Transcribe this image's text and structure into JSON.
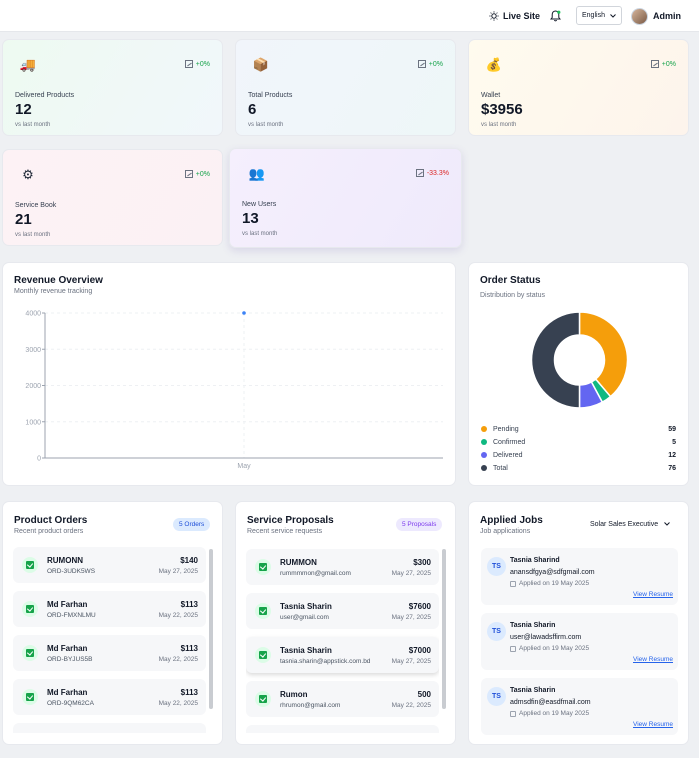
{
  "topbar": {
    "live_site_label": "Live Site",
    "language": "English",
    "user_name": "Admin"
  },
  "stats": [
    {
      "label": "Delivered Products",
      "value": "12",
      "sub": "vs last month",
      "trend": "+0%",
      "icon": "truck-icon",
      "glyph": "🚚"
    },
    {
      "label": "Total Products",
      "value": "6",
      "sub": "vs last month",
      "trend": "+0%",
      "icon": "box-icon",
      "glyph": "📦"
    },
    {
      "label": "Wallet",
      "value": "$3956",
      "sub": "vs last month",
      "trend": "+0%",
      "icon": "money-bag-icon",
      "glyph": "💰"
    },
    {
      "label": "Service Book",
      "value": "21",
      "sub": "vs last month",
      "trend": "+0%",
      "icon": "gear-icon",
      "glyph": "⚙"
    },
    {
      "label": "New Users",
      "value": "13",
      "sub": "vs last month",
      "trend": "-33.3%",
      "icon": "users-icon",
      "glyph": "👥"
    }
  ],
  "revenue": {
    "title": "Revenue Overview",
    "subtitle": "Monthly revenue tracking"
  },
  "order_status": {
    "title": "Order Status",
    "subtitle": "Distribution by status",
    "legend": [
      {
        "label": "Pending",
        "value": "59",
        "color": "#f59e0b"
      },
      {
        "label": "Confirmed",
        "value": "5",
        "color": "#10b981"
      },
      {
        "label": "Delivered",
        "value": "12",
        "color": "#6366f1"
      },
      {
        "label": "Total",
        "value": "76",
        "color": "#374151"
      }
    ]
  },
  "chart_data": [
    {
      "type": "line",
      "x": [
        "May"
      ],
      "series": [
        {
          "values": [
            4000
          ],
          "color": "#3b82f6"
        }
      ],
      "ylim": [
        0,
        4000
      ],
      "yticks": [
        "0",
        "1000",
        "2000",
        "3000",
        "4000"
      ],
      "grid": true
    },
    {
      "type": "pie",
      "categories": [
        "Pending",
        "Confirmed",
        "Delivered",
        "Total"
      ],
      "values": [
        59,
        5,
        12,
        76
      ],
      "colors": [
        "#f59e0b",
        "#10b981",
        "#6366f1",
        "#374151"
      ]
    }
  ],
  "product_orders": {
    "title": "Product Orders",
    "subtitle": "Recent product orders",
    "badge": "5 Orders",
    "rows": [
      {
        "name": "RUMONN",
        "sub": "ORD-3UDK5WS",
        "amount": "$140",
        "date": "May 27, 2025"
      },
      {
        "name": "Md Farhan",
        "sub": "ORD-FMXNLMU",
        "amount": "$113",
        "date": "May 22, 2025"
      },
      {
        "name": "Md Farhan",
        "sub": "ORD-BYJUS5B",
        "amount": "$113",
        "date": "May 22, 2025"
      },
      {
        "name": "Md Farhan",
        "sub": "ORD-9QM62CA",
        "amount": "$113",
        "date": "May 22, 2025"
      }
    ]
  },
  "service_proposals": {
    "title": "Service Proposals",
    "subtitle": "Recent service requests",
    "badge": "5 Proposals",
    "rows": [
      {
        "name": "RUMMON",
        "sub": "rummmmon@gmail.com",
        "amount": "$300",
        "date": "May 27, 2025"
      },
      {
        "name": "Tasnia Sharin",
        "sub": "user@gmail.com",
        "amount": "$7600",
        "date": "May 27, 2025"
      },
      {
        "name": "Tasnia Sharin",
        "sub": "tasnia.sharin@appstick.com.bd",
        "amount": "$7000",
        "date": "May 27, 2025"
      },
      {
        "name": "Rumon",
        "sub": "rhrumon@gmail.com",
        "amount": "500",
        "date": "May 22, 2025"
      }
    ]
  },
  "applied_jobs": {
    "title": "Applied Jobs",
    "subtitle": "Job applications",
    "role_filter": "Solar Sales Executive",
    "jobs": [
      {
        "initials": "TS",
        "name": "Tasnia Sharind",
        "email": "anansdfgya@sdfgmail.com",
        "applied": "Applied on 19 May 2025",
        "link": "View Resume"
      },
      {
        "initials": "TS",
        "name": "Tasnia Sharin",
        "email": "user@lawadsffirm.com",
        "applied": "Applied on 19 May 2025",
        "link": "View Resume"
      },
      {
        "initials": "TS",
        "name": "Tasnia Sharin",
        "email": "admsdfin@easdfmail.com",
        "applied": "Applied on 19 May 2025",
        "link": "View Resume"
      }
    ]
  }
}
